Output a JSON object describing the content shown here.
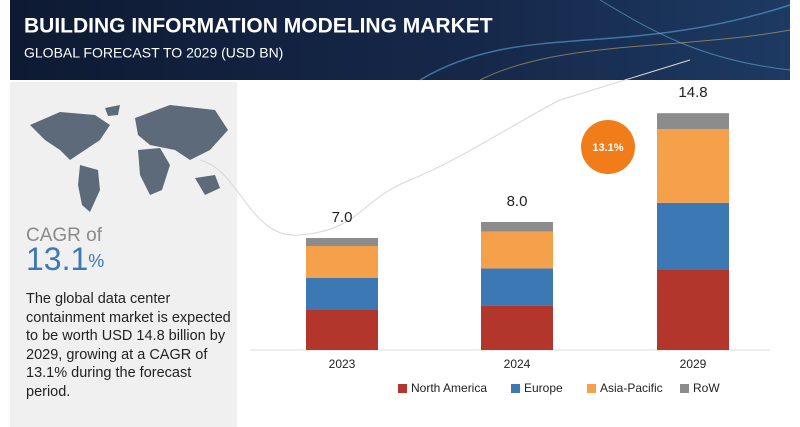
{
  "chart_data": {
    "type": "stacked_bar",
    "title": "BUILDING INFORMATION MODELING MARKET",
    "subtitle": "GLOBAL FORECAST TO 2029 (USD BN)",
    "categories": [
      "2023",
      "2024",
      "2029"
    ],
    "series": [
      {
        "name": "North America",
        "color": "#b3362d",
        "values": [
          2.5,
          2.8,
          5.0
        ]
      },
      {
        "name": "Europe",
        "color": "#3b78b4",
        "values": [
          2.0,
          2.3,
          4.2
        ]
      },
      {
        "name": "Asia-Pacific",
        "color": "#f5a14b",
        "values": [
          2.0,
          2.3,
          4.6
        ]
      },
      {
        "name": "RoW",
        "color": "#8c8c8c",
        "values": [
          0.5,
          0.6,
          1.0
        ]
      }
    ],
    "totals": [
      7.0,
      8.0,
      14.8
    ],
    "total_labels": [
      "7.0",
      "8.0",
      "14.8"
    ],
    "cagr_badge": "13.1%",
    "cagr_label": "CAGR of",
    "cagr_value": "13.1",
    "cagr_unit": "%",
    "description": "The global data center containment market is expected to be worth USD 14.8 billion by 2029, growing at a CAGR of 13.1% during the forecast period."
  }
}
